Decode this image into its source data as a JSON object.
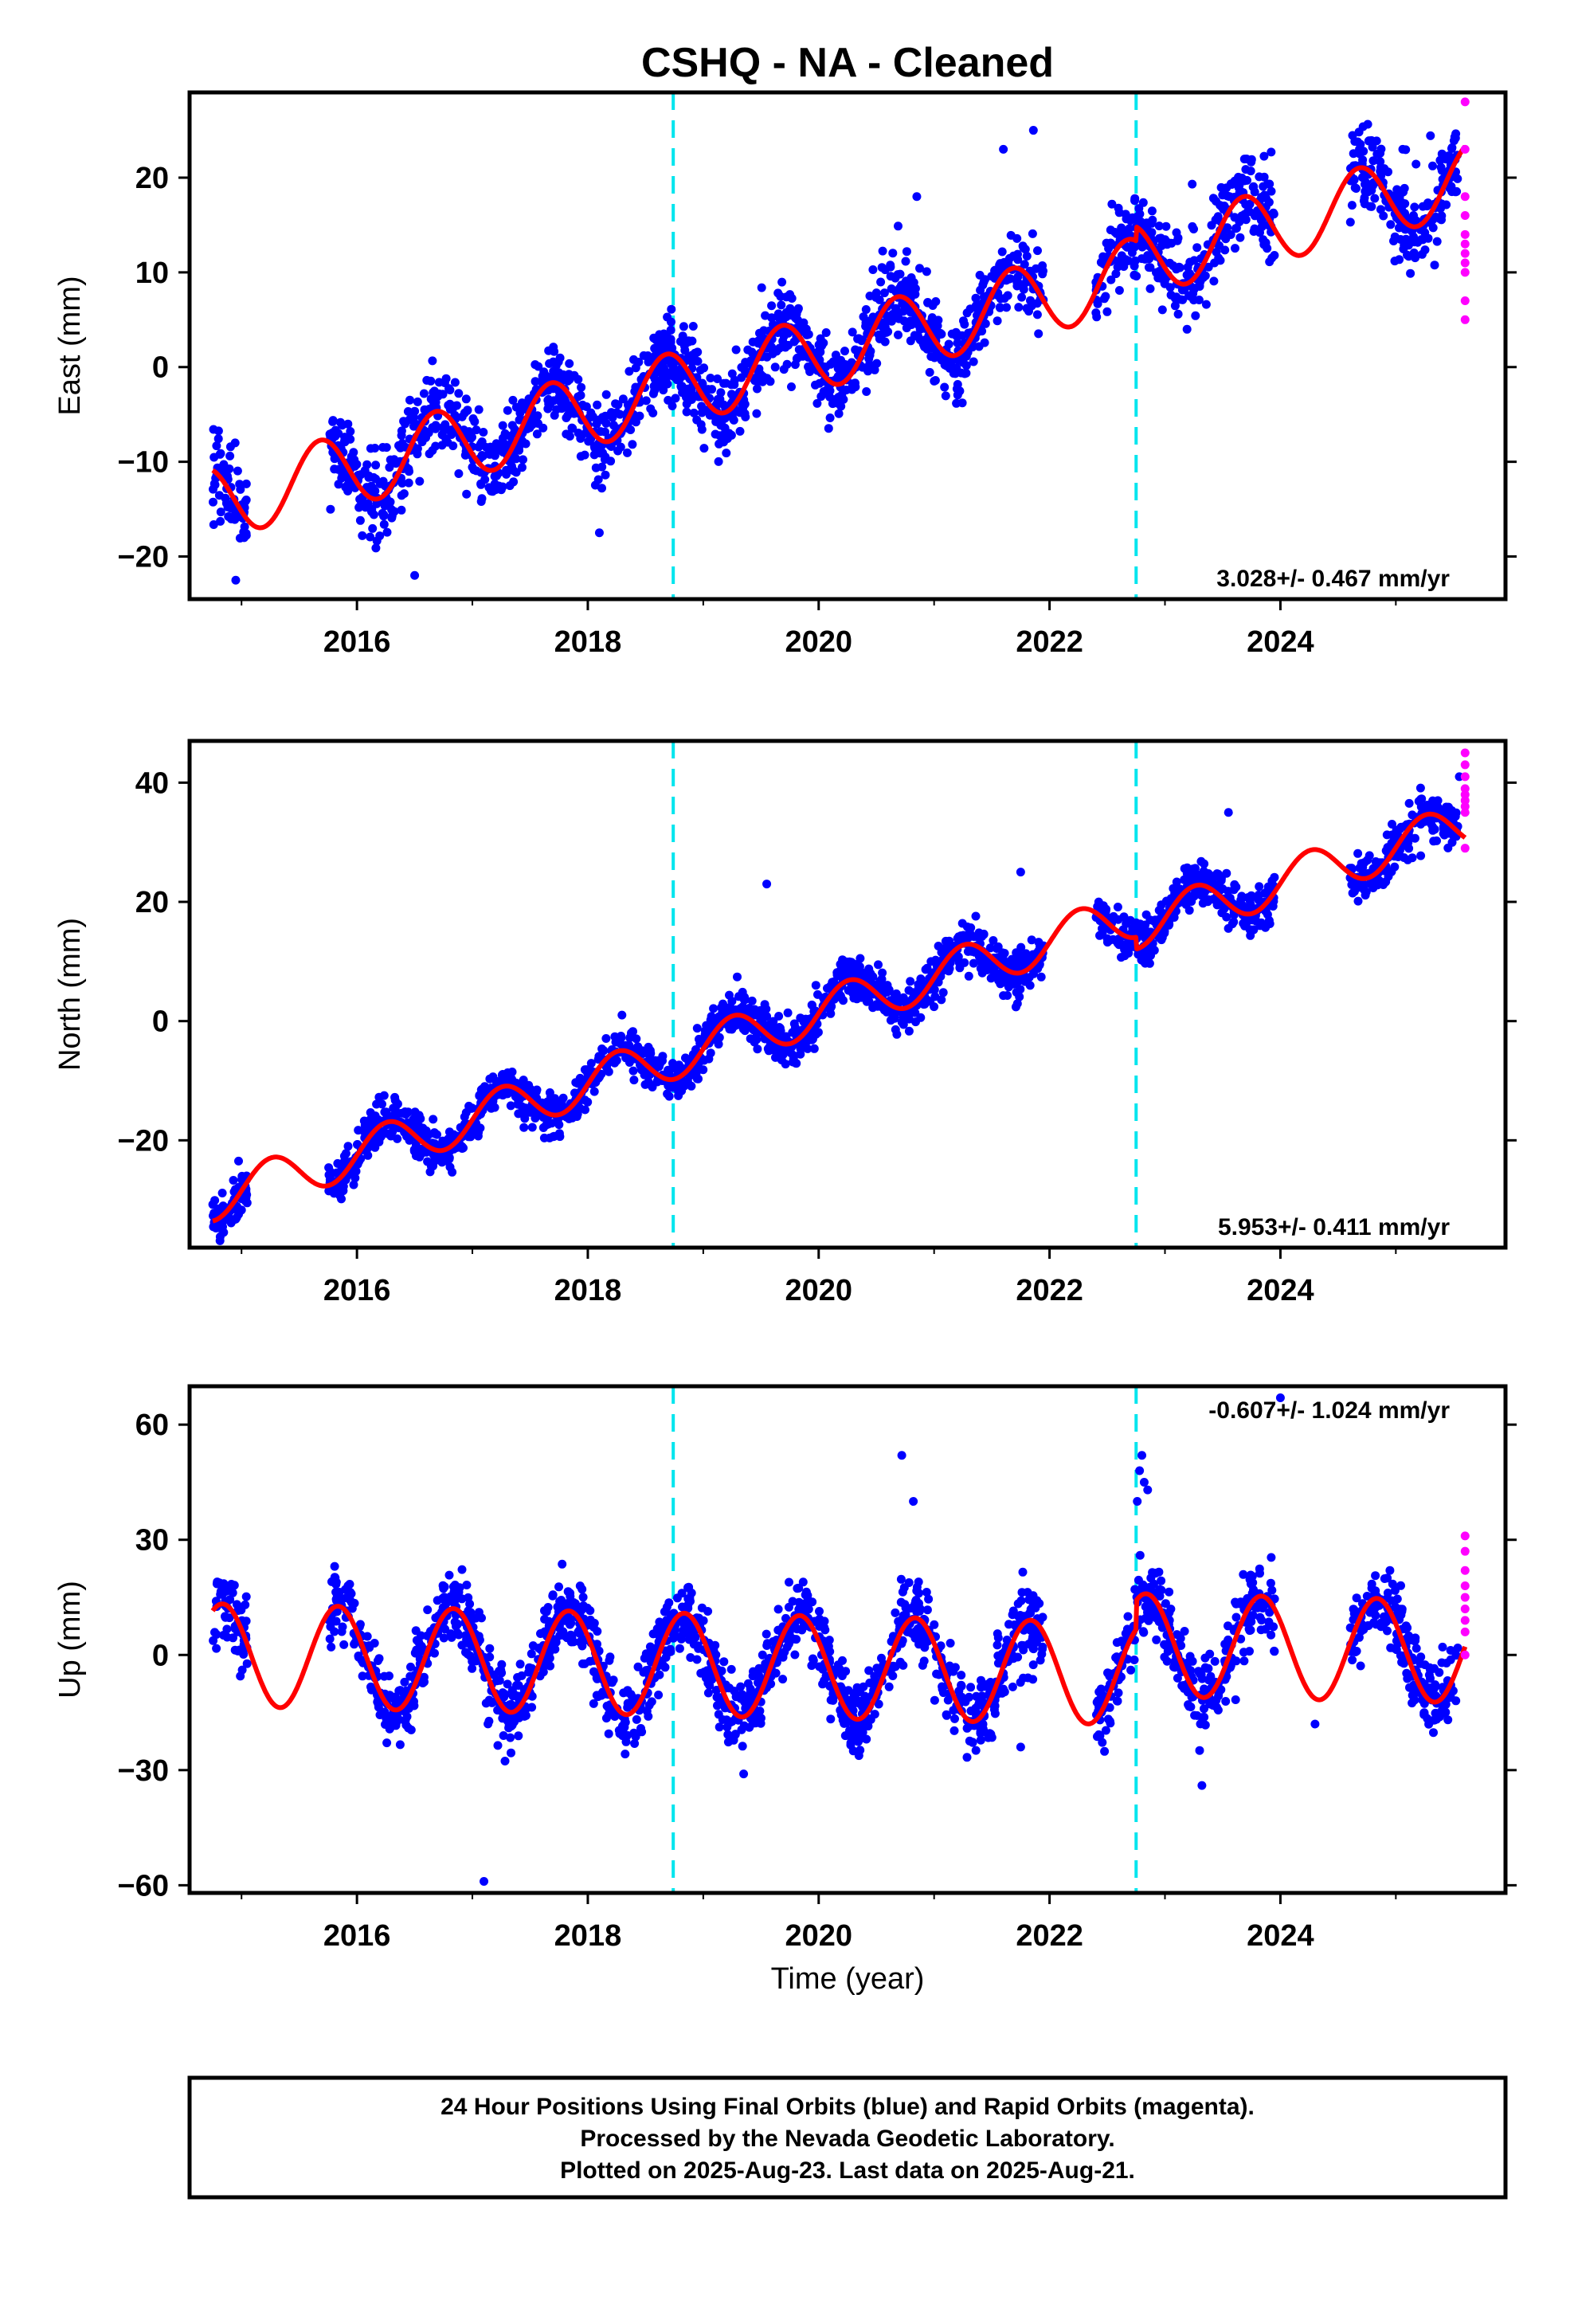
{
  "title": "CSHQ  - NA - Cleaned",
  "colors": {
    "final_points": "#0000ff",
    "rapid_points": "#ff00ff",
    "model": "#ff0000",
    "breaks": "#00e5ee",
    "frame": "#000000"
  },
  "xlabel": "Time (year)",
  "footer": {
    "line1": "24 Hour Positions Using Final Orbits (blue) and Rapid Orbits (magenta).",
    "line2": "Processed by the Nevada Geodetic Laboratory.",
    "line3": "Plotted on 2025-Aug-23. Last data on 2025-Aug-21."
  },
  "chart_data": [
    {
      "type": "scatter",
      "component": "East",
      "ylabel": "East (mm)",
      "rate_label": "3.028+/- 0.467 mm/yr",
      "xlim": [
        2014.55,
        2025.95
      ],
      "ylim": [
        -24.5,
        29
      ],
      "xticks": [
        2016,
        2018,
        2020,
        2022,
        2024
      ],
      "yticks": [
        -20,
        -10,
        0,
        10,
        20
      ],
      "yticklabels": [
        "−20",
        "−10",
        "0",
        "10",
        "20"
      ],
      "break_epochs": [
        2018.74,
        2022.75
      ],
      "model": {
        "t0": 2020.0,
        "offset": 1.5,
        "rate": 3.028,
        "ann_cos": -1.6,
        "ann_sin": -3.5,
        "semi_cos": 0.0,
        "semi_sin": 0.0,
        "steps": [
          {
            "t": 2022.75,
            "size": 1.5
          }
        ],
        "t_start": 2014.75,
        "t_end": 2025.6
      },
      "scatter": {
        "sigma": 2.2,
        "density": 220,
        "seed": 11,
        "gaps": [
          [
            2015.05,
            2015.75
          ],
          [
            2021.95,
            2022.4
          ],
          [
            2023.95,
            2024.6
          ]
        ]
      },
      "outliers": [
        [
          2021.86,
          25
        ],
        [
          2021.6,
          23
        ],
        [
          2023.92,
          22.7
        ],
        [
          2025.06,
          23
        ],
        [
          2020.85,
          18
        ],
        [
          2018.1,
          -17.5
        ],
        [
          2016.5,
          -22
        ],
        [
          2014.95,
          -22.5
        ]
      ],
      "rapid": {
        "x": 2025.6,
        "values": [
          28,
          23,
          18,
          16,
          14,
          13,
          12,
          11,
          10,
          7,
          5
        ]
      }
    },
    {
      "type": "scatter",
      "component": "North",
      "ylabel": "North (mm)",
      "rate_label": "5.953+/- 0.411 mm/yr",
      "xlim": [
        2014.55,
        2025.95
      ],
      "ylim": [
        -38,
        47
      ],
      "xticks": [
        2016,
        2018,
        2020,
        2022,
        2024
      ],
      "yticks": [
        -20,
        0,
        20,
        40
      ],
      "yticklabels": [
        "−20",
        "0",
        "20",
        "40"
      ],
      "break_epochs": [
        2018.74,
        2022.75
      ],
      "model": {
        "t0": 2020.0,
        "offset": 1.5,
        "rate": 5.953,
        "ann_cos": -0.2,
        "ann_sin": 3.8,
        "semi_cos": 0.0,
        "semi_sin": 0.0,
        "steps": [
          {
            "t": 2022.75,
            "size": -2.0
          }
        ],
        "t_start": 2014.75,
        "t_end": 2025.6
      },
      "scatter": {
        "sigma": 1.9,
        "density": 220,
        "seed": 23,
        "gaps": [
          [
            2015.05,
            2015.75
          ],
          [
            2021.95,
            2022.4
          ],
          [
            2023.95,
            2024.6
          ]
        ]
      },
      "outliers": [
        [
          2019.55,
          23
        ],
        [
          2021.75,
          25
        ],
        [
          2023.55,
          35
        ],
        [
          2025.55,
          41
        ]
      ],
      "rapid": {
        "x": 2025.6,
        "values": [
          45,
          43,
          41,
          39,
          38,
          37,
          36,
          35,
          29
        ]
      }
    },
    {
      "type": "scatter",
      "component": "Up",
      "ylabel": "Up (mm)",
      "rate_label": "-0.607+/- 1.024 mm/yr",
      "xlim": [
        2014.55,
        2025.95
      ],
      "ylim": [
        -62,
        70
      ],
      "xticks": [
        2016,
        2018,
        2020,
        2022,
        2024
      ],
      "yticks": [
        -60,
        -30,
        0,
        30,
        60
      ],
      "yticklabels": [
        "−60",
        "−30",
        "0",
        "30",
        "60"
      ],
      "break_epochs": [
        2018.74,
        2022.75
      ],
      "model": {
        "t0": 2020.0,
        "offset": -3.2,
        "rate": -0.607,
        "ann_cos": 6.8,
        "ann_sin": -11.5,
        "semi_cos": 0.0,
        "semi_sin": 0.0,
        "steps": [
          {
            "t": 2022.75,
            "size": 7.5
          }
        ],
        "t_start": 2014.75,
        "t_end": 2025.6
      },
      "scatter": {
        "sigma": 4.8,
        "density": 220,
        "seed": 37,
        "gaps": [
          [
            2015.05,
            2015.75
          ],
          [
            2021.95,
            2022.4
          ],
          [
            2023.95,
            2024.6
          ]
        ]
      },
      "outliers": [
        [
          2017.1,
          -59
        ],
        [
          2020.72,
          52
        ],
        [
          2020.82,
          40
        ],
        [
          2022.8,
          52
        ],
        [
          2022.78,
          48
        ],
        [
          2022.82,
          45
        ],
        [
          2022.85,
          43
        ],
        [
          2022.76,
          40
        ],
        [
          2019.35,
          -31
        ],
        [
          2023.32,
          -34
        ],
        [
          2024.0,
          67
        ],
        [
          2024.3,
          -18
        ],
        [
          2020.3,
          -25
        ],
        [
          2021.75,
          -24
        ]
      ],
      "rapid": {
        "x": 2025.6,
        "values": [
          31,
          27,
          22,
          18,
          15,
          12,
          9,
          6,
          0
        ]
      }
    }
  ]
}
